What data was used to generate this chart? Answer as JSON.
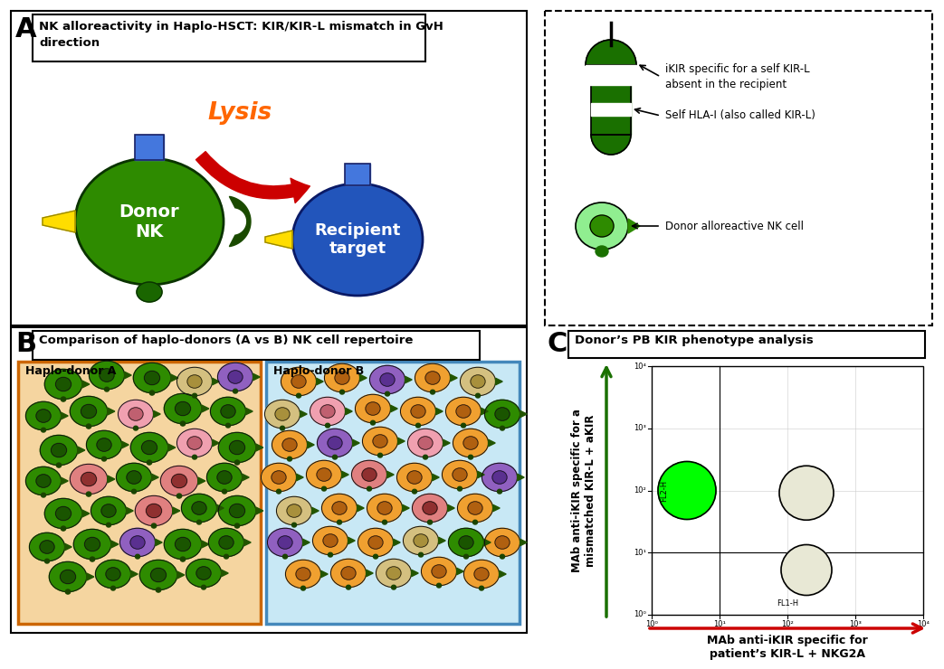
{
  "bg_color": "#ffffff",
  "panel_A_title": "NK alloreactivity in Haplo-HSCT: KIR/KIR-L mismatch in GvH\ndirection",
  "panel_B_title": "Comparison of haplo-donors (A vs B) NK cell repertoire",
  "panel_C_title": "Donor’s PB KIR phenotype analysis",
  "lysis_text": "Lysis",
  "donor_nk_text": "Donor\nNK",
  "recipient_text": "Recipient\ntarget",
  "legend_line1": "iKIR specific for a self KIR-L\nabsent in the recipient",
  "legend_line2": "Self HLA-I (also called KIR-L)",
  "legend_line3": "Donor alloreactive NK cell",
  "haplo_A_label": "Haplo-donor A",
  "haplo_B_label": "Haplo-donor B",
  "xlabel_C": "MAb anti-iKIR specific for\npatient’s KIR-L + NKG2A",
  "ylabel_C": "MAb anti-iKIR specific for a\nmismatched KIR-L + aKIR",
  "donor_nk_color": "#2e8b00",
  "recipient_color": "#2255bb",
  "arrow_color": "#cc0000",
  "lysis_color": "#ff6600",
  "green_bright": "#00ff00",
  "green_dark": "#1a7000",
  "green_medium": "#2e8b00",
  "green_light": "#90ee90",
  "haplo_A_bg": "#f5d5a0",
  "haplo_B_bg": "#c8e8f5",
  "yellow_color": "#ffee00",
  "pink_color": "#f0a0b0",
  "purple_color": "#9060c0",
  "salmon_color": "#e08080",
  "orange_color": "#f0a030",
  "tan_color": "#d4c080",
  "cells_A": [
    [
      60,
      415,
      18,
      "#2e8b00",
      "#1a5500"
    ],
    [
      108,
      405,
      17,
      "#2e8b00",
      "#1a5500"
    ],
    [
      158,
      408,
      18,
      "#2e8b00",
      "#1a5500"
    ],
    [
      205,
      412,
      17,
      "#d4c080",
      "#a8903c"
    ],
    [
      250,
      407,
      17,
      "#9060c0",
      "#5a3090"
    ],
    [
      38,
      450,
      17,
      "#2e8b00",
      "#1a5500"
    ],
    [
      88,
      445,
      18,
      "#2e8b00",
      "#1a5500"
    ],
    [
      140,
      448,
      17,
      "#f0a0b0",
      "#c06070"
    ],
    [
      192,
      442,
      18,
      "#2e8b00",
      "#1a5500"
    ],
    [
      242,
      445,
      17,
      "#2e8b00",
      "#1a5500"
    ],
    [
      55,
      488,
      18,
      "#2e8b00",
      "#1a5500"
    ],
    [
      105,
      482,
      17,
      "#2e8b00",
      "#1a5500"
    ],
    [
      155,
      485,
      18,
      "#2e8b00",
      "#1a5500"
    ],
    [
      205,
      480,
      17,
      "#f0a0b0",
      "#c06070"
    ],
    [
      252,
      485,
      18,
      "#2e8b00",
      "#1a5500"
    ],
    [
      38,
      522,
      17,
      "#2e8b00",
      "#1a5500"
    ],
    [
      88,
      520,
      18,
      "#e08080",
      "#903030"
    ],
    [
      138,
      518,
      17,
      "#2e8b00",
      "#1a5500"
    ],
    [
      188,
      522,
      18,
      "#e08080",
      "#903030"
    ],
    [
      238,
      518,
      17,
      "#2e8b00",
      "#1a5500"
    ],
    [
      60,
      558,
      18,
      "#2e8b00",
      "#1a5500"
    ],
    [
      110,
      555,
      17,
      "#2e8b00",
      "#1a5500"
    ],
    [
      160,
      555,
      18,
      "#e08080",
      "#903030"
    ],
    [
      210,
      552,
      17,
      "#2e8b00",
      "#1a5500"
    ],
    [
      252,
      555,
      18,
      "#2e8b00",
      "#1a5500"
    ],
    [
      42,
      595,
      17,
      "#2e8b00",
      "#1a5500"
    ],
    [
      92,
      592,
      18,
      "#2e8b00",
      "#1a5500"
    ],
    [
      142,
      590,
      17,
      "#9060c0",
      "#5a3090"
    ],
    [
      192,
      592,
      18,
      "#2e8b00",
      "#1a5500"
    ],
    [
      240,
      590,
      17,
      "#2e8b00",
      "#1a5500"
    ],
    [
      65,
      628,
      18,
      "#2e8b00",
      "#1a5500"
    ],
    [
      115,
      625,
      17,
      "#2e8b00",
      "#1a5500"
    ],
    [
      165,
      626,
      18,
      "#2e8b00",
      "#1a5500"
    ],
    [
      215,
      624,
      17,
      "#2e8b00",
      "#1a5500"
    ]
  ],
  "cells_B": [
    [
      320,
      412,
      17,
      "#f0a030",
      "#b06010"
    ],
    [
      368,
      408,
      17,
      "#f0a030",
      "#b06010"
    ],
    [
      418,
      410,
      17,
      "#9060c0",
      "#5a3090"
    ],
    [
      468,
      408,
      17,
      "#f0a030",
      "#b06010"
    ],
    [
      518,
      412,
      17,
      "#d4c080",
      "#a8903c"
    ],
    [
      302,
      448,
      17,
      "#d4c080",
      "#a8903c"
    ],
    [
      352,
      445,
      17,
      "#f0a0b0",
      "#c06070"
    ],
    [
      402,
      442,
      17,
      "#f0a030",
      "#b06010"
    ],
    [
      452,
      445,
      17,
      "#f0a030",
      "#b06010"
    ],
    [
      502,
      445,
      17,
      "#f0a030",
      "#b06010"
    ],
    [
      545,
      448,
      17,
      "#2e8b00",
      "#1a5500"
    ],
    [
      310,
      482,
      17,
      "#f0a030",
      "#b06010"
    ],
    [
      360,
      480,
      17,
      "#9060c0",
      "#5a3090"
    ],
    [
      410,
      478,
      17,
      "#f0a030",
      "#b06010"
    ],
    [
      460,
      480,
      17,
      "#f0a0b0",
      "#c06070"
    ],
    [
      510,
      480,
      17,
      "#f0a030",
      "#b06010"
    ],
    [
      298,
      518,
      17,
      "#f0a030",
      "#b06010"
    ],
    [
      348,
      515,
      17,
      "#f0a030",
      "#b06010"
    ],
    [
      398,
      515,
      17,
      "#e08080",
      "#903030"
    ],
    [
      448,
      518,
      17,
      "#f0a030",
      "#b06010"
    ],
    [
      498,
      515,
      17,
      "#f0a030",
      "#b06010"
    ],
    [
      542,
      518,
      17,
      "#9060c0",
      "#5a3090"
    ],
    [
      315,
      555,
      17,
      "#d4c080",
      "#a8903c"
    ],
    [
      365,
      552,
      17,
      "#f0a030",
      "#b06010"
    ],
    [
      415,
      552,
      17,
      "#f0a030",
      "#b06010"
    ],
    [
      465,
      552,
      17,
      "#e08080",
      "#903030"
    ],
    [
      515,
      552,
      17,
      "#f0a030",
      "#b06010"
    ],
    [
      305,
      590,
      17,
      "#9060c0",
      "#5a3090"
    ],
    [
      355,
      588,
      17,
      "#f0a030",
      "#b06010"
    ],
    [
      405,
      590,
      17,
      "#f0a030",
      "#b06010"
    ],
    [
      455,
      588,
      17,
      "#d4c080",
      "#a8903c"
    ],
    [
      505,
      590,
      17,
      "#2e8b00",
      "#1a5500"
    ],
    [
      545,
      590,
      17,
      "#f0a030",
      "#b06010"
    ],
    [
      325,
      625,
      17,
      "#f0a030",
      "#b06010"
    ],
    [
      375,
      624,
      17,
      "#f0a030",
      "#b06010"
    ],
    [
      425,
      624,
      17,
      "#d4c080",
      "#a8903c"
    ],
    [
      475,
      622,
      17,
      "#f0a030",
      "#b06010"
    ],
    [
      522,
      625,
      17,
      "#f0a030",
      "#b06010"
    ]
  ]
}
